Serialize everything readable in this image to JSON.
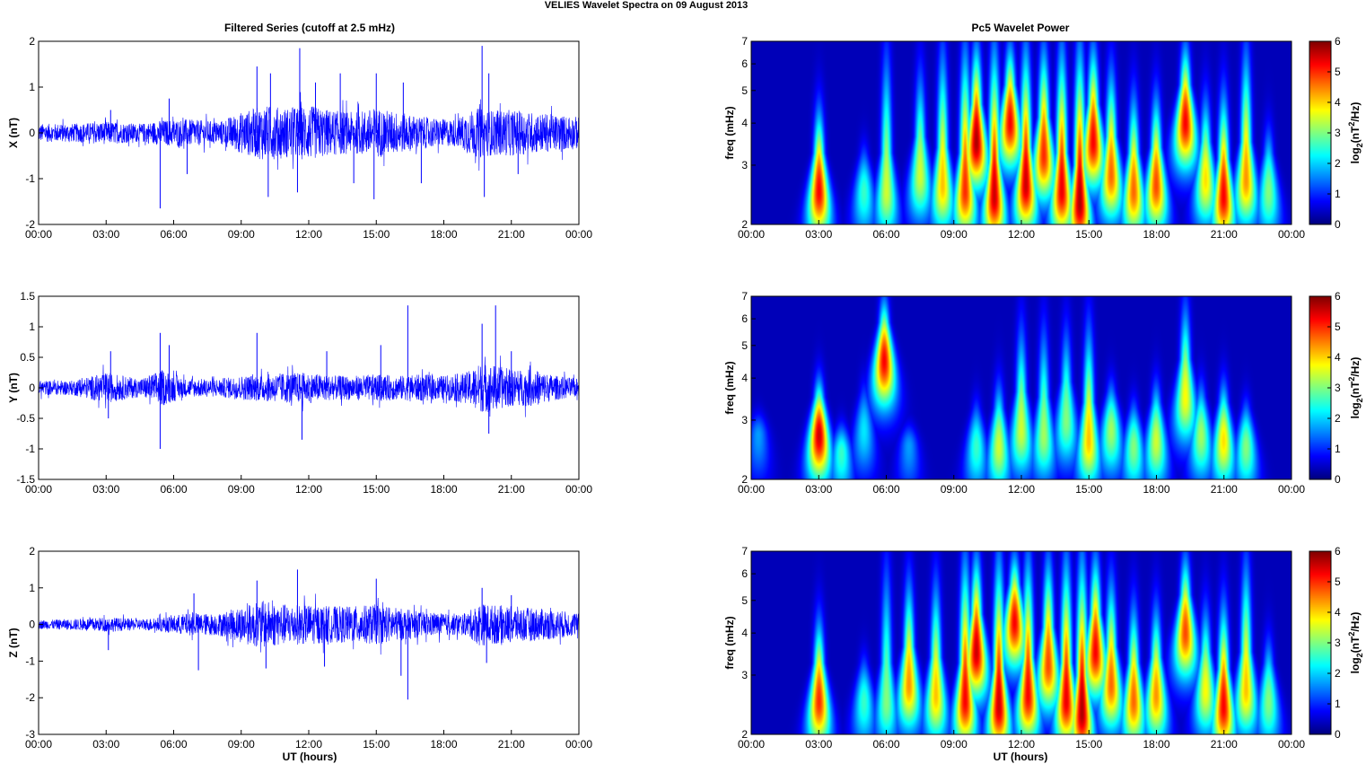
{
  "figure_title": "VELIES Wavelet Spectra on 09 August    2013",
  "left_title": "Filtered Series (cutoff at 2.5 mHz)",
  "right_title": "Pc5 Wavelet Power",
  "x_label": "UT (hours)",
  "x_ticks": [
    "00:00",
    "03:00",
    "06:00",
    "09:00",
    "12:00",
    "15:00",
    "18:00",
    "21:00",
    "00:00"
  ],
  "freq_label": "freq (mHz)",
  "colorbar_label": "log2(nT2/Hz)",
  "colors": {
    "trace": "#0000ff",
    "jet_low": "#00008f",
    "jet_high": "#800000"
  },
  "chart_data": [
    {
      "type": "line",
      "panel": "X",
      "ylabel": "X (nT)",
      "ylim": [
        -2,
        2
      ],
      "yticks": [
        "2",
        "1",
        "0",
        "-1",
        "-2"
      ],
      "xlim_hours": [
        0,
        24
      ],
      "envelope": {
        "x_hours": [
          0,
          1.5,
          3,
          4.5,
          5.5,
          6.5,
          8,
          9,
          10,
          11,
          12,
          13,
          14,
          15,
          16,
          17,
          18,
          18.6,
          19,
          19.6,
          20,
          21,
          22,
          23,
          24
        ],
        "amplitude": [
          0.2,
          0.2,
          0.25,
          0.2,
          0.28,
          0.3,
          0.25,
          0.45,
          0.6,
          0.55,
          0.6,
          0.5,
          0.45,
          0.55,
          0.45,
          0.35,
          0.3,
          0.3,
          0.45,
          0.55,
          0.5,
          0.5,
          0.45,
          0.4,
          0.35
        ]
      },
      "spikes": [
        {
          "t": 3.2,
          "v": 0.5
        },
        {
          "t": 5.4,
          "v": -1.65
        },
        {
          "t": 5.8,
          "v": 0.75
        },
        {
          "t": 6.6,
          "v": -0.9
        },
        {
          "t": 9.7,
          "v": 1.45
        },
        {
          "t": 10.2,
          "v": -1.4
        },
        {
          "t": 10.3,
          "v": 1.3
        },
        {
          "t": 11.6,
          "v": 1.85
        },
        {
          "t": 11.5,
          "v": -1.3
        },
        {
          "t": 12.3,
          "v": 1.1
        },
        {
          "t": 13.4,
          "v": 1.3
        },
        {
          "t": 14.0,
          "v": -1.1
        },
        {
          "t": 15.0,
          "v": 1.3
        },
        {
          "t": 14.9,
          "v": -1.45
        },
        {
          "t": 16.2,
          "v": 1.1
        },
        {
          "t": 17.0,
          "v": -1.1
        },
        {
          "t": 19.7,
          "v": 1.9
        },
        {
          "t": 19.8,
          "v": -1.4
        },
        {
          "t": 20.0,
          "v": 1.3
        },
        {
          "t": 21.3,
          "v": -0.9
        }
      ]
    },
    {
      "type": "line",
      "panel": "Y",
      "ylabel": "Y (nT)",
      "ylim": [
        -1.5,
        1.5
      ],
      "yticks": [
        "1.5",
        "1",
        "0.5",
        "0",
        "-0.5",
        "-1",
        "-1.5"
      ],
      "xlim_hours": [
        0,
        24
      ],
      "envelope": {
        "x_hours": [
          0,
          1.5,
          3,
          4.5,
          5.5,
          6.5,
          8,
          9,
          10,
          11,
          12,
          13,
          14,
          15,
          16,
          17,
          18,
          19,
          19.6,
          20,
          21,
          22,
          23,
          24
        ],
        "amplitude": [
          0.12,
          0.12,
          0.25,
          0.15,
          0.3,
          0.15,
          0.15,
          0.2,
          0.22,
          0.25,
          0.25,
          0.2,
          0.2,
          0.22,
          0.2,
          0.22,
          0.2,
          0.25,
          0.4,
          0.4,
          0.3,
          0.3,
          0.2,
          0.15
        ]
      },
      "spikes": [
        {
          "t": 3.2,
          "v": 0.6
        },
        {
          "t": 3.1,
          "v": -0.5
        },
        {
          "t": 5.4,
          "v": 0.9
        },
        {
          "t": 5.4,
          "v": -1.0
        },
        {
          "t": 5.8,
          "v": 0.7
        },
        {
          "t": 9.7,
          "v": 0.9
        },
        {
          "t": 11.7,
          "v": -0.85
        },
        {
          "t": 16.4,
          "v": 1.35
        },
        {
          "t": 15.2,
          "v": 0.7
        },
        {
          "t": 19.7,
          "v": 1.05
        },
        {
          "t": 20.3,
          "v": 1.35
        },
        {
          "t": 20.0,
          "v": -0.75
        },
        {
          "t": 21.0,
          "v": 0.6
        },
        {
          "t": 12.8,
          "v": 0.6
        }
      ]
    },
    {
      "type": "line",
      "panel": "Z",
      "ylabel": "Z (nT)",
      "ylim": [
        -3,
        2
      ],
      "yticks": [
        "2",
        "1",
        "0",
        "-1",
        "-2",
        "-3"
      ],
      "xlim_hours": [
        0,
        24
      ],
      "envelope": {
        "x_hours": [
          0,
          1.5,
          3,
          4.5,
          5.5,
          6.5,
          8,
          9,
          10,
          11,
          12,
          13,
          14,
          15,
          16,
          17,
          18,
          19,
          19.6,
          20,
          21,
          22,
          23,
          24
        ],
        "amplitude": [
          0.12,
          0.15,
          0.2,
          0.15,
          0.2,
          0.3,
          0.3,
          0.5,
          0.65,
          0.55,
          0.55,
          0.5,
          0.5,
          0.55,
          0.45,
          0.35,
          0.3,
          0.3,
          0.6,
          0.55,
          0.5,
          0.45,
          0.4,
          0.3
        ]
      },
      "spikes": [
        {
          "t": 3.1,
          "v": -0.7
        },
        {
          "t": 6.9,
          "v": 0.85
        },
        {
          "t": 7.1,
          "v": -1.25
        },
        {
          "t": 9.7,
          "v": 1.2
        },
        {
          "t": 10.1,
          "v": -1.2
        },
        {
          "t": 11.5,
          "v": 1.5
        },
        {
          "t": 12.7,
          "v": -1.15
        },
        {
          "t": 15.0,
          "v": 1.25
        },
        {
          "t": 16.1,
          "v": -1.4
        },
        {
          "t": 16.4,
          "v": -2.05
        },
        {
          "t": 19.7,
          "v": 1.0
        },
        {
          "t": 19.9,
          "v": -1.05
        },
        {
          "t": 21.0,
          "v": 0.8
        }
      ]
    },
    {
      "type": "heatmap",
      "panel": "X",
      "ylabel": "freq (mHz)",
      "yscale": "log",
      "ylim": [
        2,
        7
      ],
      "yticks": [
        "7",
        "6",
        "5",
        "4",
        "3",
        "2"
      ],
      "clim": [
        0,
        6
      ],
      "colorbar_ticks": [
        "6",
        "5",
        "4",
        "3",
        "2",
        "1",
        "0"
      ],
      "colormap": "jet",
      "bursts": [
        {
          "t": 3.0,
          "f0": 2.5,
          "amp": 5.5,
          "top": 4.5
        },
        {
          "t": 5.0,
          "f0": 2.5,
          "amp": 2.5,
          "top": 3.5
        },
        {
          "t": 6.0,
          "f0": 2.5,
          "amp": 3.5,
          "top": 7
        },
        {
          "t": 7.5,
          "f0": 2.8,
          "amp": 3.5,
          "top": 6
        },
        {
          "t": 8.5,
          "f0": 2.6,
          "amp": 4.2,
          "top": 7
        },
        {
          "t": 9.5,
          "f0": 2.5,
          "amp": 5.2,
          "top": 7
        },
        {
          "t": 10.0,
          "f0": 3.5,
          "amp": 6.0,
          "top": 7
        },
        {
          "t": 10.8,
          "f0": 2.4,
          "amp": 5.8,
          "top": 7
        },
        {
          "t": 11.5,
          "f0": 4.0,
          "amp": 5.5,
          "top": 7
        },
        {
          "t": 12.2,
          "f0": 2.6,
          "amp": 5.8,
          "top": 7
        },
        {
          "t": 13.0,
          "f0": 3.2,
          "amp": 5.2,
          "top": 7
        },
        {
          "t": 13.8,
          "f0": 2.5,
          "amp": 5.6,
          "top": 7
        },
        {
          "t": 14.6,
          "f0": 2.3,
          "amp": 6.0,
          "top": 7
        },
        {
          "t": 15.2,
          "f0": 3.5,
          "amp": 5.5,
          "top": 7
        },
        {
          "t": 16.0,
          "f0": 2.8,
          "amp": 4.8,
          "top": 6
        },
        {
          "t": 17.0,
          "f0": 2.5,
          "amp": 4.8,
          "top": 5
        },
        {
          "t": 18.0,
          "f0": 2.6,
          "amp": 5.0,
          "top": 5
        },
        {
          "t": 19.3,
          "f0": 4.0,
          "amp": 5.5,
          "top": 7
        },
        {
          "t": 20.2,
          "f0": 2.7,
          "amp": 4.0,
          "top": 5
        },
        {
          "t": 21.0,
          "f0": 2.4,
          "amp": 5.5,
          "top": 5
        },
        {
          "t": 22.0,
          "f0": 2.7,
          "amp": 4.5,
          "top": 7
        },
        {
          "t": 23.0,
          "f0": 2.5,
          "amp": 3.0,
          "top": 4
        }
      ]
    },
    {
      "type": "heatmap",
      "panel": "Y",
      "ylabel": "freq (mHz)",
      "yscale": "log",
      "ylim": [
        2,
        7
      ],
      "yticks": [
        "7",
        "6",
        "5",
        "4",
        "3",
        "2"
      ],
      "clim": [
        0,
        6
      ],
      "colorbar_ticks": [
        "6",
        "5",
        "4",
        "3",
        "2",
        "1",
        "0"
      ],
      "colormap": "jet",
      "bursts": [
        {
          "t": 0.3,
          "f0": 2.7,
          "amp": 1.5,
          "top": 3
        },
        {
          "t": 3.0,
          "f0": 2.7,
          "amp": 5.8,
          "top": 4
        },
        {
          "t": 4.0,
          "f0": 2.4,
          "amp": 2.5,
          "top": 3
        },
        {
          "t": 5.0,
          "f0": 2.8,
          "amp": 2.0,
          "top": 4
        },
        {
          "t": 5.9,
          "f0": 4.5,
          "amp": 5.5,
          "top": 7
        },
        {
          "t": 7.0,
          "f0": 2.5,
          "amp": 1.5,
          "top": 3
        },
        {
          "t": 10.0,
          "f0": 2.5,
          "amp": 2.5,
          "top": 3.5
        },
        {
          "t": 11.0,
          "f0": 2.5,
          "amp": 3.5,
          "top": 4
        },
        {
          "t": 12.0,
          "f0": 2.8,
          "amp": 3.5,
          "top": 6
        },
        {
          "t": 13.0,
          "f0": 2.7,
          "amp": 3.2,
          "top": 6
        },
        {
          "t": 14.0,
          "f0": 3.0,
          "amp": 3.0,
          "top": 6
        },
        {
          "t": 15.0,
          "f0": 2.6,
          "amp": 4.2,
          "top": 6
        },
        {
          "t": 16.0,
          "f0": 2.8,
          "amp": 3.2,
          "top": 4
        },
        {
          "t": 17.0,
          "f0": 2.5,
          "amp": 3.0,
          "top": 3.5
        },
        {
          "t": 18.0,
          "f0": 2.6,
          "amp": 3.5,
          "top": 4
        },
        {
          "t": 19.3,
          "f0": 3.5,
          "amp": 3.8,
          "top": 7
        },
        {
          "t": 20.0,
          "f0": 2.7,
          "amp": 3.2,
          "top": 4
        },
        {
          "t": 21.0,
          "f0": 2.6,
          "amp": 4.0,
          "top": 4
        },
        {
          "t": 22.0,
          "f0": 2.5,
          "amp": 3.0,
          "top": 3.5
        }
      ]
    },
    {
      "type": "heatmap",
      "panel": "Z",
      "ylabel": "freq (mHz)",
      "yscale": "log",
      "ylim": [
        2,
        7
      ],
      "yticks": [
        "7",
        "6",
        "5",
        "4",
        "3",
        "2"
      ],
      "clim": [
        0,
        6
      ],
      "colorbar_ticks": [
        "6",
        "5",
        "4",
        "3",
        "2",
        "1",
        "0"
      ],
      "colormap": "jet",
      "bursts": [
        {
          "t": 3.0,
          "f0": 2.5,
          "amp": 5.2,
          "top": 4.5
        },
        {
          "t": 5.0,
          "f0": 2.5,
          "amp": 2.5,
          "top": 3.5
        },
        {
          "t": 6.0,
          "f0": 2.5,
          "amp": 3.0,
          "top": 7
        },
        {
          "t": 7.0,
          "f0": 2.8,
          "amp": 4.5,
          "top": 6
        },
        {
          "t": 8.2,
          "f0": 2.6,
          "amp": 4.2,
          "top": 6
        },
        {
          "t": 9.5,
          "f0": 2.5,
          "amp": 5.5,
          "top": 7
        },
        {
          "t": 10.0,
          "f0": 3.5,
          "amp": 5.8,
          "top": 7
        },
        {
          "t": 11.0,
          "f0": 2.4,
          "amp": 5.8,
          "top": 7
        },
        {
          "t": 11.7,
          "f0": 4.3,
          "amp": 5.5,
          "top": 7
        },
        {
          "t": 12.3,
          "f0": 2.6,
          "amp": 5.5,
          "top": 7
        },
        {
          "t": 13.2,
          "f0": 3.2,
          "amp": 5.0,
          "top": 7
        },
        {
          "t": 14.0,
          "f0": 2.5,
          "amp": 5.6,
          "top": 7
        },
        {
          "t": 14.7,
          "f0": 2.3,
          "amp": 6.0,
          "top": 7
        },
        {
          "t": 15.3,
          "f0": 3.5,
          "amp": 5.5,
          "top": 7
        },
        {
          "t": 16.0,
          "f0": 2.8,
          "amp": 4.8,
          "top": 6
        },
        {
          "t": 17.0,
          "f0": 2.5,
          "amp": 4.8,
          "top": 5
        },
        {
          "t": 18.0,
          "f0": 2.6,
          "amp": 4.5,
          "top": 5
        },
        {
          "t": 19.3,
          "f0": 4.0,
          "amp": 5.0,
          "top": 7
        },
        {
          "t": 20.2,
          "f0": 2.7,
          "amp": 3.8,
          "top": 5
        },
        {
          "t": 21.0,
          "f0": 2.4,
          "amp": 5.5,
          "top": 5
        },
        {
          "t": 22.0,
          "f0": 2.7,
          "amp": 4.2,
          "top": 7
        },
        {
          "t": 23.0,
          "f0": 2.5,
          "amp": 3.0,
          "top": 4
        }
      ]
    }
  ]
}
